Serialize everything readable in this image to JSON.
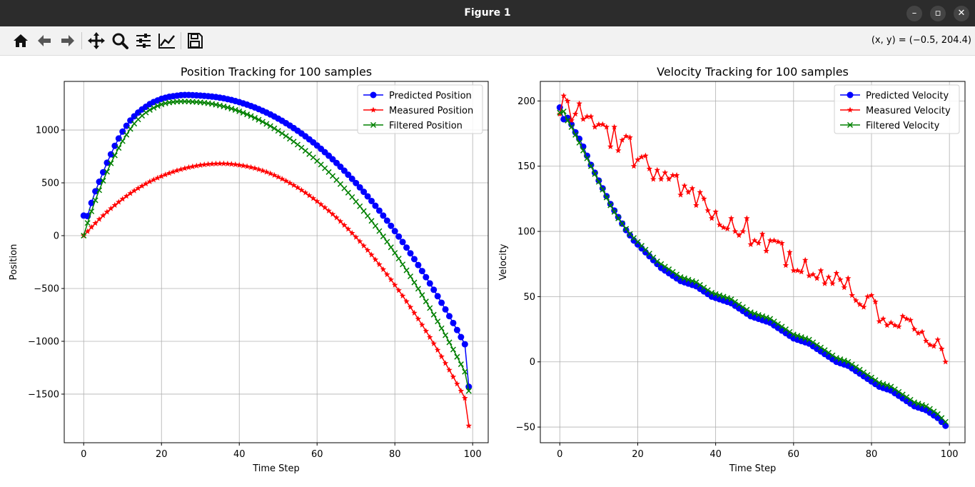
{
  "window": {
    "title": "Figure 1",
    "minimize_glyph": "–",
    "maximize_glyph": "▫",
    "close_glyph": "✕"
  },
  "toolbar": {
    "icons": [
      "home-icon",
      "back-arrow-icon",
      "forward-arrow-icon",
      "pan-move-icon",
      "zoom-magnifier-icon",
      "configure-subplots-icon",
      "edit-axis-curves-icon",
      "save-floppy-icon"
    ],
    "coords": "(x, y) = (−0.5, 204.4)"
  },
  "colors": {
    "predicted": "#0000ff",
    "measured": "#ff0000",
    "filtered": "#008000"
  },
  "chart_data": [
    {
      "type": "line",
      "title": "Position Tracking for 100 samples",
      "xlabel": "Time Step",
      "ylabel": "Position",
      "xlim": [
        -5,
        104
      ],
      "ylim": [
        -1960,
        1460
      ],
      "xticks": [
        0,
        20,
        40,
        60,
        80,
        100
      ],
      "xtick_labels": [
        "0",
        "20",
        "40",
        "60",
        "80",
        "100"
      ],
      "yticks": [
        -1500,
        -1000,
        -500,
        0,
        500,
        1000
      ],
      "ytick_labels": [
        "−1500",
        "−1000",
        "−500",
        "0",
        "500",
        "1000"
      ],
      "grid": true,
      "legend": "top-right",
      "x_start": 0,
      "x_step": 1,
      "series": [
        {
          "name": "Predicted Position",
          "marker": "circle",
          "color": "#0000ff",
          "values": [
            190,
            185,
            310,
            420,
            510,
            600,
            690,
            770,
            850,
            920,
            985,
            1040,
            1090,
            1130,
            1165,
            1195,
            1220,
            1245,
            1265,
            1280,
            1295,
            1305,
            1315,
            1320,
            1325,
            1330,
            1332,
            1332,
            1330,
            1328,
            1326,
            1323,
            1320,
            1316,
            1312,
            1306,
            1300,
            1292,
            1284,
            1274,
            1264,
            1252,
            1240,
            1227,
            1213,
            1198,
            1182,
            1165,
            1147,
            1128,
            1108,
            1087,
            1065,
            1042,
            1018,
            993,
            967,
            940,
            912,
            883,
            853,
            822,
            790,
            757,
            723,
            688,
            652,
            615,
            577,
            538,
            498,
            457,
            415,
            372,
            328,
            283,
            237,
            190,
            142,
            93,
            43,
            -8,
            -60,
            -113,
            -167,
            -222,
            -278,
            -335,
            -393,
            -452,
            -512,
            -573,
            -635,
            -698,
            -762,
            -827,
            -893,
            -960,
            -1028,
            -1430
          ]
        },
        {
          "name": "Measured Position",
          "marker": "star",
          "color": "#ff0000",
          "values": [
            0,
            40,
            80,
            118,
            155,
            190,
            224,
            257,
            288,
            318,
            347,
            374,
            400,
            425,
            448,
            470,
            491,
            511,
            529,
            546,
            562,
            577,
            591,
            604,
            616,
            627,
            637,
            646,
            654,
            661,
            667,
            672,
            676,
            679,
            681,
            682,
            682,
            680,
            677,
            673,
            668,
            662,
            655,
            647,
            638,
            627,
            615,
            602,
            588,
            572,
            555,
            537,
            518,
            498,
            477,
            455,
            431,
            406,
            380,
            353,
            325,
            296,
            266,
            235,
            203,
            170,
            135,
            99,
            62,
            24,
            -15,
            -55,
            -96,
            -138,
            -182,
            -227,
            -273,
            -320,
            -368,
            -417,
            -467,
            -518,
            -570,
            -623,
            -677,
            -732,
            -788,
            -845,
            -903,
            -962,
            -1022,
            -1083,
            -1145,
            -1208,
            -1272,
            -1337,
            -1403,
            -1470,
            -1538,
            -1800
          ]
        },
        {
          "name": "Filtered Position",
          "marker": "x",
          "color": "#008000",
          "values": [
            0,
            120,
            230,
            335,
            430,
            520,
            605,
            685,
            760,
            830,
            895,
            955,
            1010,
            1060,
            1100,
            1135,
            1165,
            1190,
            1210,
            1228,
            1242,
            1252,
            1260,
            1265,
            1268,
            1270,
            1270,
            1269,
            1267,
            1265,
            1262,
            1258,
            1253,
            1247,
            1240,
            1232,
            1223,
            1213,
            1202,
            1190,
            1177,
            1163,
            1148,
            1132,
            1115,
            1097,
            1078,
            1058,
            1037,
            1015,
            992,
            968,
            943,
            917,
            890,
            862,
            833,
            803,
            772,
            740,
            707,
            673,
            638,
            602,
            565,
            527,
            488,
            448,
            407,
            365,
            322,
            278,
            233,
            187,
            140,
            92,
            43,
            -7,
            -58,
            -110,
            -163,
            -217,
            -272,
            -328,
            -385,
            -443,
            -502,
            -562,
            -623,
            -685,
            -748,
            -812,
            -877,
            -943,
            -1010,
            -1078,
            -1147,
            -1217,
            -1288,
            -1470
          ]
        }
      ]
    },
    {
      "type": "line",
      "title": "Velocity Tracking for 100 samples",
      "xlabel": "Time Step",
      "ylabel": "Velocity",
      "xlim": [
        -5,
        104
      ],
      "ylim": [
        -62,
        215
      ],
      "xticks": [
        0,
        20,
        40,
        60,
        80,
        100
      ],
      "xtick_labels": [
        "0",
        "20",
        "40",
        "60",
        "80",
        "100"
      ],
      "yticks": [
        -50,
        0,
        50,
        100,
        150,
        200
      ],
      "ytick_labels": [
        "−50",
        "0",
        "50",
        "100",
        "150",
        "200"
      ],
      "grid": true,
      "legend": "top-right",
      "x_start": 0,
      "x_step": 1,
      "series": [
        {
          "name": "Predicted Velocity",
          "marker": "circle",
          "color": "#0000ff",
          "values": [
            195,
            186,
            187,
            182,
            176,
            171,
            165,
            158,
            151,
            145,
            139,
            133,
            127,
            121,
            116,
            111,
            106,
            101,
            97,
            93,
            90,
            87,
            84,
            81,
            78,
            75,
            72,
            70,
            68,
            66,
            64,
            62,
            61,
            60,
            59,
            58,
            56,
            54,
            52,
            50,
            49,
            48,
            47,
            46,
            45,
            43,
            41,
            39,
            37,
            35,
            34,
            33,
            32,
            31,
            30,
            28,
            26,
            24,
            22,
            20,
            18,
            17,
            16,
            15,
            14,
            12,
            10,
            8,
            6,
            4,
            2,
            0,
            -1,
            -2,
            -3,
            -5,
            -7,
            -9,
            -11,
            -13,
            -15,
            -17,
            -19,
            -20,
            -21,
            -22,
            -24,
            -26,
            -28,
            -30,
            -32,
            -34,
            -35,
            -36,
            -37,
            -39,
            -41,
            -43,
            -46,
            -49
          ]
        },
        {
          "name": "Measured Velocity",
          "marker": "star",
          "color": "#ff0000",
          "values": [
            190,
            204,
            200,
            185,
            190,
            198,
            186,
            188,
            188,
            180,
            182,
            182,
            180,
            165,
            180,
            162,
            170,
            173,
            172,
            150,
            155,
            157,
            158,
            148,
            140,
            147,
            140,
            145,
            140,
            143,
            143,
            128,
            135,
            130,
            133,
            120,
            130,
            125,
            116,
            110,
            115,
            105,
            103,
            102,
            110,
            100,
            97,
            100,
            110,
            90,
            93,
            91,
            98,
            85,
            93,
            93,
            92,
            91,
            74,
            84,
            70,
            70,
            69,
            78,
            66,
            67,
            64,
            70,
            60,
            65,
            60,
            68,
            63,
            57,
            64,
            51,
            47,
            44,
            42,
            50,
            51,
            46,
            31,
            33,
            28,
            30,
            28,
            27,
            35,
            33,
            32,
            25,
            22,
            23,
            16,
            13,
            12,
            17,
            10,
            0
          ]
        },
        {
          "name": "Filtered Velocity",
          "marker": "x",
          "color": "#008000",
          "values": [
            191,
            192,
            185,
            180,
            174,
            168,
            162,
            156,
            150,
            144,
            138,
            132,
            126,
            120,
            115,
            110,
            106,
            102,
            98,
            95,
            92,
            89,
            86,
            83,
            80,
            77,
            75,
            73,
            71,
            69,
            67,
            65,
            64,
            63,
            62,
            61,
            59,
            57,
            55,
            53,
            52,
            51,
            50,
            49,
            48,
            46,
            44,
            42,
            40,
            38,
            37,
            36,
            35,
            34,
            33,
            31,
            29,
            27,
            25,
            23,
            21,
            20,
            19,
            18,
            17,
            15,
            13,
            11,
            9,
            7,
            5,
            3,
            2,
            1,
            0,
            -2,
            -4,
            -6,
            -8,
            -10,
            -12,
            -14,
            -16,
            -17,
            -18,
            -19,
            -21,
            -23,
            -25,
            -27,
            -29,
            -31,
            -32,
            -33,
            -34,
            -36,
            -38,
            -40,
            -43,
            -46
          ]
        }
      ]
    }
  ]
}
